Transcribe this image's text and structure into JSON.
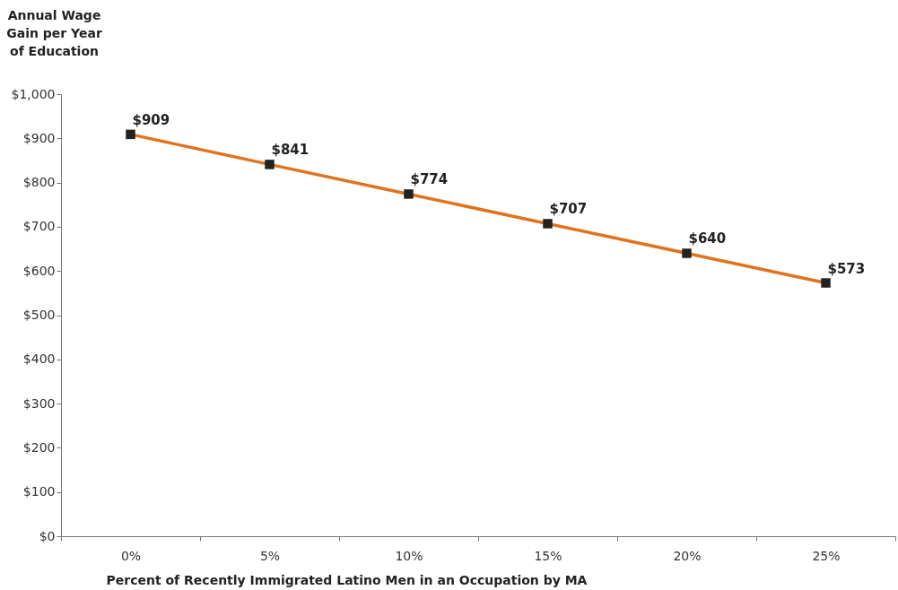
{
  "chart_data": {
    "type": "line",
    "xlabel": "Percent of Recently Immigrated Latino Men in an Occupation by MA",
    "ylabel": "Annual Wage Gain per Year of Education",
    "categories": [
      "0%",
      "5%",
      "10%",
      "15%",
      "20%",
      "25%"
    ],
    "series": [
      {
        "color": "#e0731e",
        "values": [
          909,
          841,
          774,
          707,
          640,
          573
        ],
        "value_labels": [
          "$909",
          "$841",
          "$774",
          "$707",
          "$640",
          "$573"
        ]
      }
    ],
    "ylim": [
      0,
      1000
    ],
    "yticks": [
      {
        "value": 0,
        "label": "$0"
      },
      {
        "value": 100,
        "label": "$100"
      },
      {
        "value": 200,
        "label": "$200"
      },
      {
        "value": 300,
        "label": "$300"
      },
      {
        "value": 400,
        "label": "$400"
      },
      {
        "value": 500,
        "label": "$500"
      },
      {
        "value": 600,
        "label": "$600"
      },
      {
        "value": 700,
        "label": "$700"
      },
      {
        "value": 800,
        "label": "$800"
      },
      {
        "value": 900,
        "label": "$900"
      },
      {
        "value": 1000,
        "label": "$1,000"
      }
    ],
    "marker": "square",
    "line_style": "solid",
    "grid": false
  }
}
